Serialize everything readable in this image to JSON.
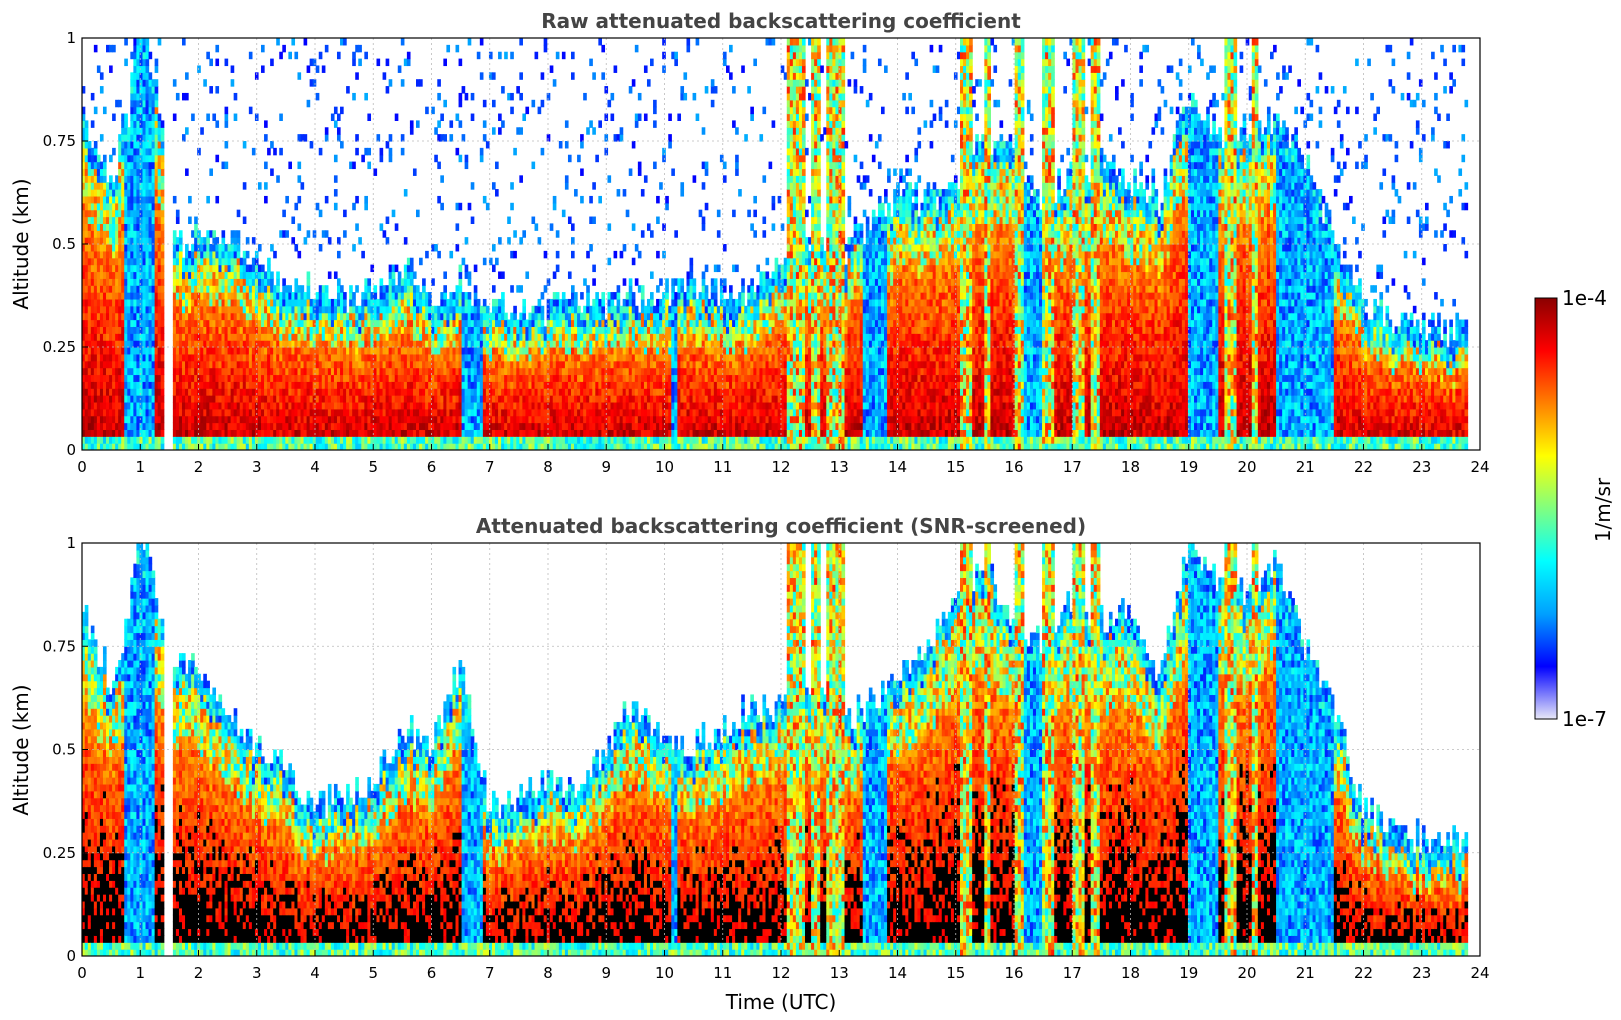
{
  "chart_data": [
    {
      "type": "heatmap",
      "title": "Raw attenuated backscattering coefficient",
      "xlabel": "",
      "ylabel": "Altitude (km)",
      "xlim": [
        0,
        24
      ],
      "ylim": [
        0,
        1
      ],
      "x_ticks": [
        "0",
        "1",
        "2",
        "3",
        "4",
        "5",
        "6",
        "7",
        "8",
        "9",
        "10",
        "11",
        "12",
        "13",
        "14",
        "15",
        "16",
        "17",
        "18",
        "19",
        "20",
        "21",
        "22",
        "23",
        "24"
      ],
      "y_ticks": [
        "0",
        "0.25",
        "0.5",
        "0.75",
        "1"
      ],
      "grid": true,
      "screened": false,
      "data_end_hour": 23.8,
      "gap_hours": [
        1.4,
        1.55
      ],
      "boundary_layer_top_km": [
        [
          0,
          0.75
        ],
        [
          0.5,
          0.6
        ],
        [
          0.8,
          0.75
        ],
        [
          1.0,
          1.0
        ],
        [
          1.3,
          0.8
        ],
        [
          1.6,
          0.45
        ],
        [
          2.0,
          0.45
        ],
        [
          2.5,
          0.45
        ],
        [
          3.0,
          0.4
        ],
        [
          3.5,
          0.35
        ],
        [
          4.0,
          0.35
        ],
        [
          4.5,
          0.3
        ],
        [
          5.0,
          0.32
        ],
        [
          5.5,
          0.4
        ],
        [
          6.0,
          0.3
        ],
        [
          6.5,
          0.35
        ],
        [
          7.0,
          0.3
        ],
        [
          7.5,
          0.28
        ],
        [
          8.0,
          0.28
        ],
        [
          8.5,
          0.3
        ],
        [
          9.0,
          0.3
        ],
        [
          9.5,
          0.32
        ],
        [
          10.0,
          0.32
        ],
        [
          10.5,
          0.35
        ],
        [
          11.0,
          0.32
        ],
        [
          11.5,
          0.32
        ],
        [
          12.0,
          0.4
        ],
        [
          12.5,
          0.45
        ],
        [
          13.0,
          0.4
        ],
        [
          13.5,
          0.5
        ],
        [
          14.0,
          0.55
        ],
        [
          14.5,
          0.55
        ],
        [
          15.0,
          0.6
        ],
        [
          15.5,
          0.7
        ],
        [
          16.0,
          0.65
        ],
        [
          16.5,
          0.55
        ],
        [
          17.0,
          0.6
        ],
        [
          17.5,
          0.65
        ],
        [
          18.0,
          0.6
        ],
        [
          18.5,
          0.55
        ],
        [
          19.0,
          0.8
        ],
        [
          19.5,
          0.7
        ],
        [
          20.0,
          0.7
        ],
        [
          20.5,
          0.75
        ],
        [
          21.0,
          0.65
        ],
        [
          21.5,
          0.45
        ],
        [
          22.0,
          0.3
        ],
        [
          22.5,
          0.25
        ],
        [
          23.0,
          0.25
        ],
        [
          23.8,
          0.22
        ]
      ],
      "precipitation_columns_hours": [
        [
          12.1,
          12.4
        ],
        [
          12.5,
          12.7
        ],
        [
          12.8,
          13.1
        ],
        [
          15.1,
          15.3
        ],
        [
          15.5,
          15.6
        ],
        [
          16.0,
          16.15
        ],
        [
          16.5,
          16.7
        ],
        [
          17.0,
          17.2
        ],
        [
          17.3,
          17.5
        ],
        [
          19.6,
          19.8
        ],
        [
          20.1,
          20.2
        ]
      ],
      "clear_low_layers_hours": [
        [
          0.75,
          1.25
        ],
        [
          6.5,
          6.9
        ],
        [
          10.1,
          10.25
        ],
        [
          13.4,
          13.8
        ],
        [
          16.2,
          16.5
        ],
        [
          19.0,
          19.5
        ],
        [
          20.5,
          21.5
        ]
      ]
    },
    {
      "type": "heatmap",
      "title": "Attenuated backscattering coefficient (SNR-screened)",
      "xlabel": "Time (UTC)",
      "ylabel": "Altitude (km)",
      "xlim": [
        0,
        24
      ],
      "ylim": [
        0,
        1
      ],
      "x_ticks": [
        "0",
        "1",
        "2",
        "3",
        "4",
        "5",
        "6",
        "7",
        "8",
        "9",
        "10",
        "11",
        "12",
        "13",
        "14",
        "15",
        "16",
        "17",
        "18",
        "19",
        "20",
        "21",
        "22",
        "23",
        "24"
      ],
      "y_ticks": [
        "0",
        "0.25",
        "0.5",
        "0.75",
        "1"
      ],
      "grid": true,
      "screened": true,
      "data_end_hour": 23.8,
      "gap_hours": [
        1.4,
        1.55
      ],
      "boundary_layer_top_km": [
        [
          0,
          0.8
        ],
        [
          0.5,
          0.6
        ],
        [
          0.8,
          0.75
        ],
        [
          1.0,
          1.0
        ],
        [
          1.3,
          0.8
        ],
        [
          1.6,
          0.65
        ],
        [
          2.0,
          0.65
        ],
        [
          2.5,
          0.55
        ],
        [
          3.0,
          0.45
        ],
        [
          3.5,
          0.4
        ],
        [
          4.0,
          0.3
        ],
        [
          4.5,
          0.32
        ],
        [
          5.0,
          0.35
        ],
        [
          5.5,
          0.5
        ],
        [
          6.0,
          0.45
        ],
        [
          6.5,
          0.65
        ],
        [
          7.0,
          0.3
        ],
        [
          7.5,
          0.32
        ],
        [
          8.0,
          0.38
        ],
        [
          8.5,
          0.35
        ],
        [
          9.0,
          0.45
        ],
        [
          9.5,
          0.55
        ],
        [
          10.0,
          0.48
        ],
        [
          10.5,
          0.45
        ],
        [
          11.0,
          0.5
        ],
        [
          11.5,
          0.55
        ],
        [
          12.0,
          0.55
        ],
        [
          12.5,
          0.6
        ],
        [
          13.0,
          0.5
        ],
        [
          13.5,
          0.55
        ],
        [
          14.0,
          0.6
        ],
        [
          14.5,
          0.7
        ],
        [
          15.0,
          0.8
        ],
        [
          15.5,
          0.9
        ],
        [
          16.0,
          0.75
        ],
        [
          16.5,
          0.7
        ],
        [
          17.0,
          0.8
        ],
        [
          17.5,
          0.75
        ],
        [
          18.0,
          0.8
        ],
        [
          18.5,
          0.6
        ],
        [
          19.0,
          0.95
        ],
        [
          19.5,
          0.85
        ],
        [
          20.0,
          0.8
        ],
        [
          20.5,
          0.9
        ],
        [
          21.0,
          0.7
        ],
        [
          21.5,
          0.55
        ],
        [
          22.0,
          0.3
        ],
        [
          22.5,
          0.25
        ],
        [
          23.0,
          0.23
        ],
        [
          23.8,
          0.22
        ]
      ],
      "precipitation_columns_hours": [
        [
          12.1,
          12.4
        ],
        [
          12.5,
          12.7
        ],
        [
          12.8,
          13.1
        ],
        [
          15.1,
          15.3
        ],
        [
          15.5,
          15.6
        ],
        [
          16.0,
          16.15
        ],
        [
          16.5,
          16.7
        ],
        [
          17.0,
          17.2
        ],
        [
          17.3,
          17.5
        ],
        [
          19.6,
          19.8
        ],
        [
          20.1,
          20.2
        ]
      ],
      "clear_low_layers_hours": [
        [
          0.75,
          1.25
        ],
        [
          6.5,
          6.9
        ],
        [
          10.1,
          10.25
        ],
        [
          13.4,
          13.8
        ],
        [
          16.2,
          16.5
        ],
        [
          19.0,
          19.5
        ],
        [
          20.5,
          21.5
        ]
      ]
    }
  ],
  "colorbar": {
    "label": "1/m/sr",
    "max_label": "1e-4",
    "min_label": "1e-7",
    "scale": "log",
    "range": [
      1e-07,
      0.0001
    ],
    "colormap": "jet",
    "colors": [
      "#e8e8f8",
      "#0000ff",
      "#00a0ff",
      "#00ffff",
      "#80ff80",
      "#ffff00",
      "#ff8000",
      "#ff0000",
      "#8b0000"
    ]
  }
}
